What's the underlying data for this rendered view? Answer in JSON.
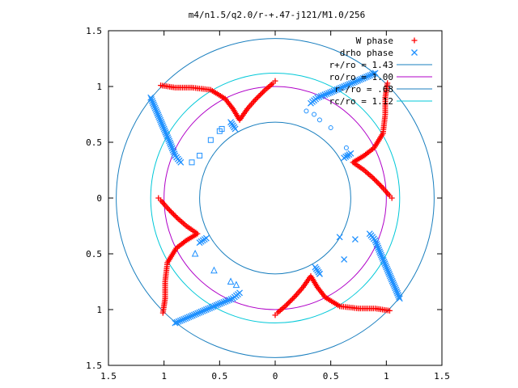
{
  "chart_data": {
    "type": "scatter",
    "title": "m4/n1.5/q2.0/r-+.47-j121/M1.0/256",
    "xlim": [
      -1.5,
      1.5
    ],
    "ylim": [
      -1.5,
      1.5
    ],
    "x_ticks": [
      {
        "v": -1.5,
        "label": "1.5"
      },
      {
        "v": -1.0,
        "label": "1"
      },
      {
        "v": -0.5,
        "label": "0.5"
      },
      {
        "v": 0,
        "label": "0"
      },
      {
        "v": 0.5,
        "label": "0.5"
      },
      {
        "v": 1.0,
        "label": "1"
      },
      {
        "v": 1.5,
        "label": "1.5"
      }
    ],
    "y_ticks": [
      {
        "v": 1.5,
        "label": "1.5"
      },
      {
        "v": 1.0,
        "label": "1"
      },
      {
        "v": 0.5,
        "label": "0.5"
      },
      {
        "v": 0,
        "label": "0"
      },
      {
        "v": -0.5,
        "label": "0.5"
      },
      {
        "v": -1.0,
        "label": "1"
      },
      {
        "v": -1.5,
        "label": "1.5"
      }
    ],
    "grid": false,
    "legend_position": "top-right",
    "series": [
      {
        "name": "W phase",
        "kind": "points",
        "marker": "plus",
        "color": "#ff0000",
        "points": [
          [
            -1.03,
            1.01
          ],
          [
            -0.9,
            0.99
          ],
          [
            -0.75,
            0.99
          ],
          [
            -0.58,
            0.97
          ],
          [
            -0.45,
            0.89
          ],
          [
            -0.38,
            0.8
          ],
          [
            -0.32,
            0.7
          ],
          [
            -0.25,
            0.8
          ],
          [
            -0.18,
            0.88
          ],
          [
            -0.1,
            0.96
          ],
          [
            -0.02,
            1.03
          ],
          [
            0.0,
            1.05
          ],
          [
            1.01,
            1.03
          ],
          [
            0.99,
            0.9
          ],
          [
            0.99,
            0.75
          ],
          [
            0.97,
            0.58
          ],
          [
            0.89,
            0.45
          ],
          [
            0.8,
            0.38
          ],
          [
            0.7,
            0.32
          ],
          [
            0.8,
            0.25
          ],
          [
            0.88,
            0.18
          ],
          [
            0.96,
            0.1
          ],
          [
            1.03,
            0.02
          ],
          [
            1.05,
            0.0
          ],
          [
            1.03,
            -1.01
          ],
          [
            0.9,
            -0.99
          ],
          [
            0.75,
            -0.99
          ],
          [
            0.58,
            -0.97
          ],
          [
            0.45,
            -0.89
          ],
          [
            0.38,
            -0.8
          ],
          [
            0.32,
            -0.7
          ],
          [
            0.25,
            -0.8
          ],
          [
            0.18,
            -0.88
          ],
          [
            0.1,
            -0.96
          ],
          [
            0.02,
            -1.03
          ],
          [
            0.0,
            -1.05
          ],
          [
            -1.01,
            -1.03
          ],
          [
            -0.99,
            -0.9
          ],
          [
            -0.99,
            -0.75
          ],
          [
            -0.97,
            -0.58
          ],
          [
            -0.89,
            -0.45
          ],
          [
            -0.8,
            -0.38
          ],
          [
            -0.7,
            -0.32
          ],
          [
            -0.8,
            -0.25
          ],
          [
            -0.88,
            -0.18
          ],
          [
            -0.96,
            -0.1
          ],
          [
            -1.03,
            -0.02
          ],
          [
            -1.05,
            0.0
          ]
        ]
      },
      {
        "name": "drho phase",
        "kind": "points",
        "marker": "x",
        "color": "#1e90ff",
        "points": [
          [
            -1.12,
            0.9
          ],
          [
            -1.06,
            0.76
          ],
          [
            -1.0,
            0.62
          ],
          [
            -0.94,
            0.48
          ],
          [
            -0.9,
            0.38
          ],
          [
            -0.85,
            0.32
          ],
          [
            -0.4,
            0.68
          ],
          [
            -0.36,
            0.62
          ],
          [
            0.9,
            1.12
          ],
          [
            0.76,
            1.06
          ],
          [
            0.62,
            1.0
          ],
          [
            0.48,
            0.94
          ],
          [
            0.38,
            0.9
          ],
          [
            0.32,
            0.85
          ],
          [
            0.68,
            0.4
          ],
          [
            0.62,
            0.36
          ],
          [
            1.12,
            -0.9
          ],
          [
            1.06,
            -0.76
          ],
          [
            1.0,
            -0.62
          ],
          [
            0.94,
            -0.48
          ],
          [
            0.9,
            -0.38
          ],
          [
            0.85,
            -0.32
          ],
          [
            0.4,
            -0.68
          ],
          [
            0.36,
            -0.62
          ],
          [
            -0.9,
            -1.12
          ],
          [
            -0.76,
            -1.06
          ],
          [
            -0.62,
            -1.0
          ],
          [
            -0.48,
            -0.94
          ],
          [
            -0.38,
            -0.9
          ],
          [
            -0.32,
            -0.85
          ],
          [
            -0.68,
            -0.4
          ],
          [
            -0.62,
            -0.36
          ]
        ]
      },
      {
        "name": "r+/ro = 1.43",
        "kind": "circle",
        "r": 1.43,
        "color": "#1a7fbf"
      },
      {
        "name": "ro/ro = 1.00",
        "kind": "circle",
        "r": 1.0,
        "color": "#b000c8"
      },
      {
        "name": "r-/ro = .68",
        "kind": "circle",
        "r": 0.68,
        "color": "#1a7fbf"
      },
      {
        "name": "rc/ro = 1.12",
        "kind": "circle",
        "r": 1.12,
        "color": "#00c8d8"
      }
    ],
    "extra_markers": [
      {
        "marker": "square",
        "color": "#1e90ff",
        "points": [
          [
            -0.58,
            0.52
          ],
          [
            -0.68,
            0.38
          ],
          [
            -0.75,
            0.32
          ],
          [
            -0.5,
            0.6
          ],
          [
            -0.48,
            0.62
          ]
        ]
      },
      {
        "marker": "circle",
        "color": "#1e90ff",
        "points": [
          [
            0.28,
            0.78
          ],
          [
            0.35,
            0.75
          ],
          [
            0.4,
            0.7
          ],
          [
            0.5,
            0.63
          ],
          [
            0.64,
            0.45
          ],
          [
            0.65,
            0.38
          ]
        ]
      },
      {
        "marker": "x",
        "color": "#1e90ff",
        "points": [
          [
            0.58,
            -0.35
          ],
          [
            0.72,
            -0.37
          ],
          [
            0.62,
            -0.55
          ],
          [
            0.4,
            -0.68
          ]
        ]
      },
      {
        "marker": "triangle",
        "color": "#1e90ff",
        "points": [
          [
            -0.72,
            -0.5
          ],
          [
            -0.55,
            -0.65
          ],
          [
            -0.4,
            -0.75
          ],
          [
            -0.35,
            -0.78
          ]
        ]
      }
    ]
  }
}
